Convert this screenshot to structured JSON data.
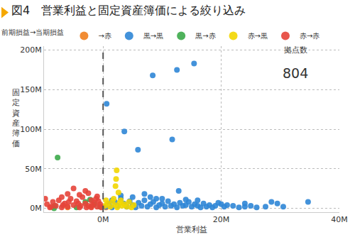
{
  "chart_data": {
    "type": "scatter",
    "title": "図4　営業利益と固定資産簿価による絞り込み",
    "legend_title": "前期損益→当期損益",
    "x_label": "営業利益",
    "y_label": "固定資産簿価",
    "annotations": [
      {
        "text": "拠点数"
      },
      {
        "text": "804"
      }
    ],
    "marker": "circle",
    "grid": true,
    "legend": "top-left",
    "reference_x": 0,
    "xlim": [
      -10,
      40
    ],
    "xticks": [
      {
        "value": 0,
        "label": "0M"
      },
      {
        "value": 20,
        "label": "20M"
      },
      {
        "value": 40,
        "label": "40M"
      }
    ],
    "ylim": [
      -5,
      205
    ],
    "yticks": [
      {
        "value": 0,
        "label": "0M"
      },
      {
        "value": 50,
        "label": "50M"
      },
      {
        "value": 100,
        "label": "100M"
      },
      {
        "value": 150,
        "label": "150M"
      },
      {
        "value": 200,
        "label": "200M"
      }
    ],
    "series": [
      {
        "name": "→赤",
        "color": "#f07f1e",
        "x": [
          -2,
          -6,
          0.5
        ],
        "values": [
          2,
          1,
          1
        ]
      },
      {
        "name": "黒→黒",
        "color": "#2f86d6",
        "x": [
          0.6,
          3.6,
          5.9,
          8.4,
          12.5,
          15.4,
          11.7,
          12.8,
          9,
          7,
          16,
          20,
          0.5,
          1,
          1.5,
          2,
          2.5,
          3,
          3.5,
          4,
          4.5,
          5,
          5.5,
          6,
          6.5,
          7,
          7.5,
          8,
          8.5,
          9,
          9.5,
          10,
          10.5,
          11,
          11.5,
          12,
          12.5,
          13,
          13.5,
          14,
          14.5,
          15,
          15.5,
          16,
          16.5,
          17,
          17.5,
          18,
          18.5,
          19,
          19.5,
          20.5,
          21,
          22,
          23,
          24,
          25,
          26,
          27.5,
          28.5,
          29.5,
          30.5,
          34.7,
          3,
          5,
          10,
          14,
          1.5,
          8,
          24
        ],
        "values": [
          132,
          97,
          74,
          168,
          175,
          183,
          87,
          22,
          12,
          18,
          10,
          5,
          2,
          5,
          1,
          8,
          3,
          12,
          6,
          2,
          9,
          4,
          1,
          7,
          3,
          10,
          2,
          5,
          8,
          1,
          4,
          6,
          2,
          9,
          3,
          5,
          1,
          7,
          3,
          4,
          8,
          2,
          5,
          3,
          1,
          6,
          2,
          4,
          1,
          3,
          7,
          2,
          4,
          3,
          1,
          2,
          3,
          1,
          2,
          8,
          6,
          2,
          8,
          16,
          14,
          12,
          11,
          10,
          14,
          6
        ]
      },
      {
        "name": "黒→赤",
        "color": "#3caa4a",
        "x": [
          -7.7,
          -8.2,
          -8.3,
          -3,
          -1.5,
          -0.5,
          -4.5,
          -2.2
        ],
        "values": [
          64,
          3,
          0,
          8,
          5,
          2,
          1,
          11
        ]
      },
      {
        "name": "赤→黒",
        "color": "#f2d600",
        "x": [
          2.3,
          2.2,
          2.1,
          2.6,
          0.3,
          0.8,
          1.2,
          1.6,
          2,
          2.4,
          2.8,
          3.2,
          3.6,
          4,
          4.4,
          4.8,
          0.5,
          1.8,
          3,
          5.2
        ],
        "values": [
          48,
          37,
          28,
          20,
          3,
          6,
          2,
          9,
          4,
          1,
          7,
          3,
          5,
          2,
          8,
          1,
          10,
          12,
          10,
          4
        ]
      },
      {
        "name": "赤→赤",
        "color": "#e5443a",
        "x": [
          -9.8,
          -9.5,
          -9,
          -8.5,
          -8,
          -7.5,
          -7,
          -6.5,
          -6,
          -5.5,
          -5,
          -5,
          -4.5,
          -4,
          -3.5,
          -3,
          -3,
          -2.5,
          -2,
          -2,
          -1.5,
          -1,
          -1,
          -0.5,
          -0.3,
          -6,
          -4,
          -2.5,
          -7,
          -8.8,
          -1.8,
          -3.8,
          -5.8,
          -6.8,
          -0.8,
          -1.2,
          -4.2,
          -2.8
        ],
        "values": [
          12,
          5,
          1,
          8,
          3,
          10,
          1,
          6,
          2,
          12,
          25,
          4,
          9,
          1,
          14,
          22,
          6,
          3,
          10,
          1,
          7,
          15,
          2,
          5,
          1,
          18,
          17,
          19,
          14,
          2,
          4,
          3,
          8,
          4,
          9,
          12,
          6,
          1
        ]
      }
    ]
  }
}
